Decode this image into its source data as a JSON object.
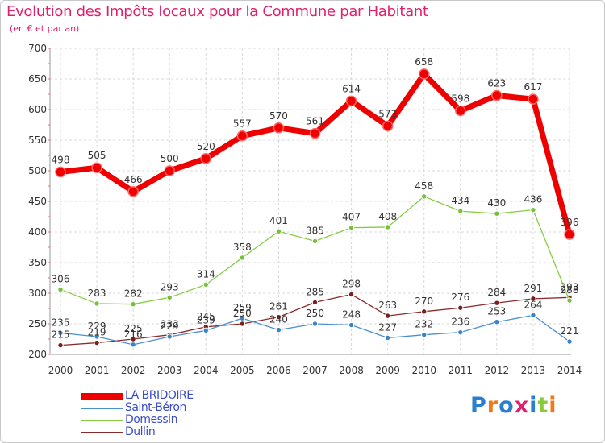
{
  "title": "Evolution des Impôts locaux pour la Commune par Habitant",
  "subtitle": "(en € et par an)",
  "logo": {
    "text": "Proxiti",
    "colors": [
      "#2a7fd0",
      "#f07a1a",
      "#2a7fd0",
      "#e0206c",
      "#2a7fd0",
      "#8ac83c",
      "#f07a1a"
    ]
  },
  "chart_data": {
    "type": "line",
    "title": "Evolution des Impôts locaux pour la Commune par Habitant",
    "subtitle": "(en € et par an)",
    "x": [
      "2000",
      "2001",
      "2002",
      "2003",
      "2004",
      "2005",
      "2006",
      "2007",
      "2008",
      "2009",
      "2010",
      "2011",
      "2012",
      "2013",
      "2014"
    ],
    "ylim": [
      200,
      700
    ],
    "yticks": [
      "200",
      "250",
      "300",
      "350",
      "400",
      "450",
      "500",
      "550",
      "600",
      "650",
      "700"
    ],
    "grid": true,
    "legend_position": "bottom-left",
    "series": [
      {
        "name": "LA BRIDOIRE",
        "color": "#ee0000",
        "values": [
          498,
          505,
          466,
          500,
          520,
          557,
          570,
          561,
          614,
          573,
          658,
          598,
          623,
          617,
          396
        ],
        "labels": [
          "498",
          "505",
          "466",
          "500",
          "520",
          "557",
          "570",
          "561",
          "614",
          "573",
          "658",
          "598",
          "623",
          "617",
          "396"
        ]
      },
      {
        "name": "Saint-Béron",
        "color": "#4a90d0",
        "values": [
          235,
          229,
          216,
          229,
          239,
          259,
          240,
          250,
          248,
          227,
          232,
          236,
          253,
          264,
          221
        ],
        "labels": [
          "235",
          "229",
          "216",
          "229",
          "239",
          "259",
          "240",
          "250",
          "248",
          "227",
          "232",
          "236",
          "253",
          "264",
          "221"
        ]
      },
      {
        "name": "Domessin",
        "color": "#88cc44",
        "values": [
          306,
          283,
          282,
          293,
          314,
          358,
          401,
          385,
          407,
          408,
          458,
          434,
          430,
          436,
          288
        ],
        "labels": [
          "306",
          "283",
          "282",
          "293",
          "314",
          "358",
          "401",
          "385",
          "407",
          "408",
          "458",
          "434",
          "430",
          "436",
          "288"
        ]
      },
      {
        "name": "Dullin",
        "color": "#8b2a2a",
        "values": [
          215,
          219,
          225,
          232,
          245,
          250,
          261,
          285,
          298,
          263,
          270,
          276,
          284,
          291,
          293
        ],
        "labels": [
          "215",
          "219",
          "225",
          "232",
          "245",
          "250",
          "261",
          "285",
          "298",
          "263",
          "270",
          "276",
          "284",
          "291",
          "293"
        ]
      }
    ]
  }
}
